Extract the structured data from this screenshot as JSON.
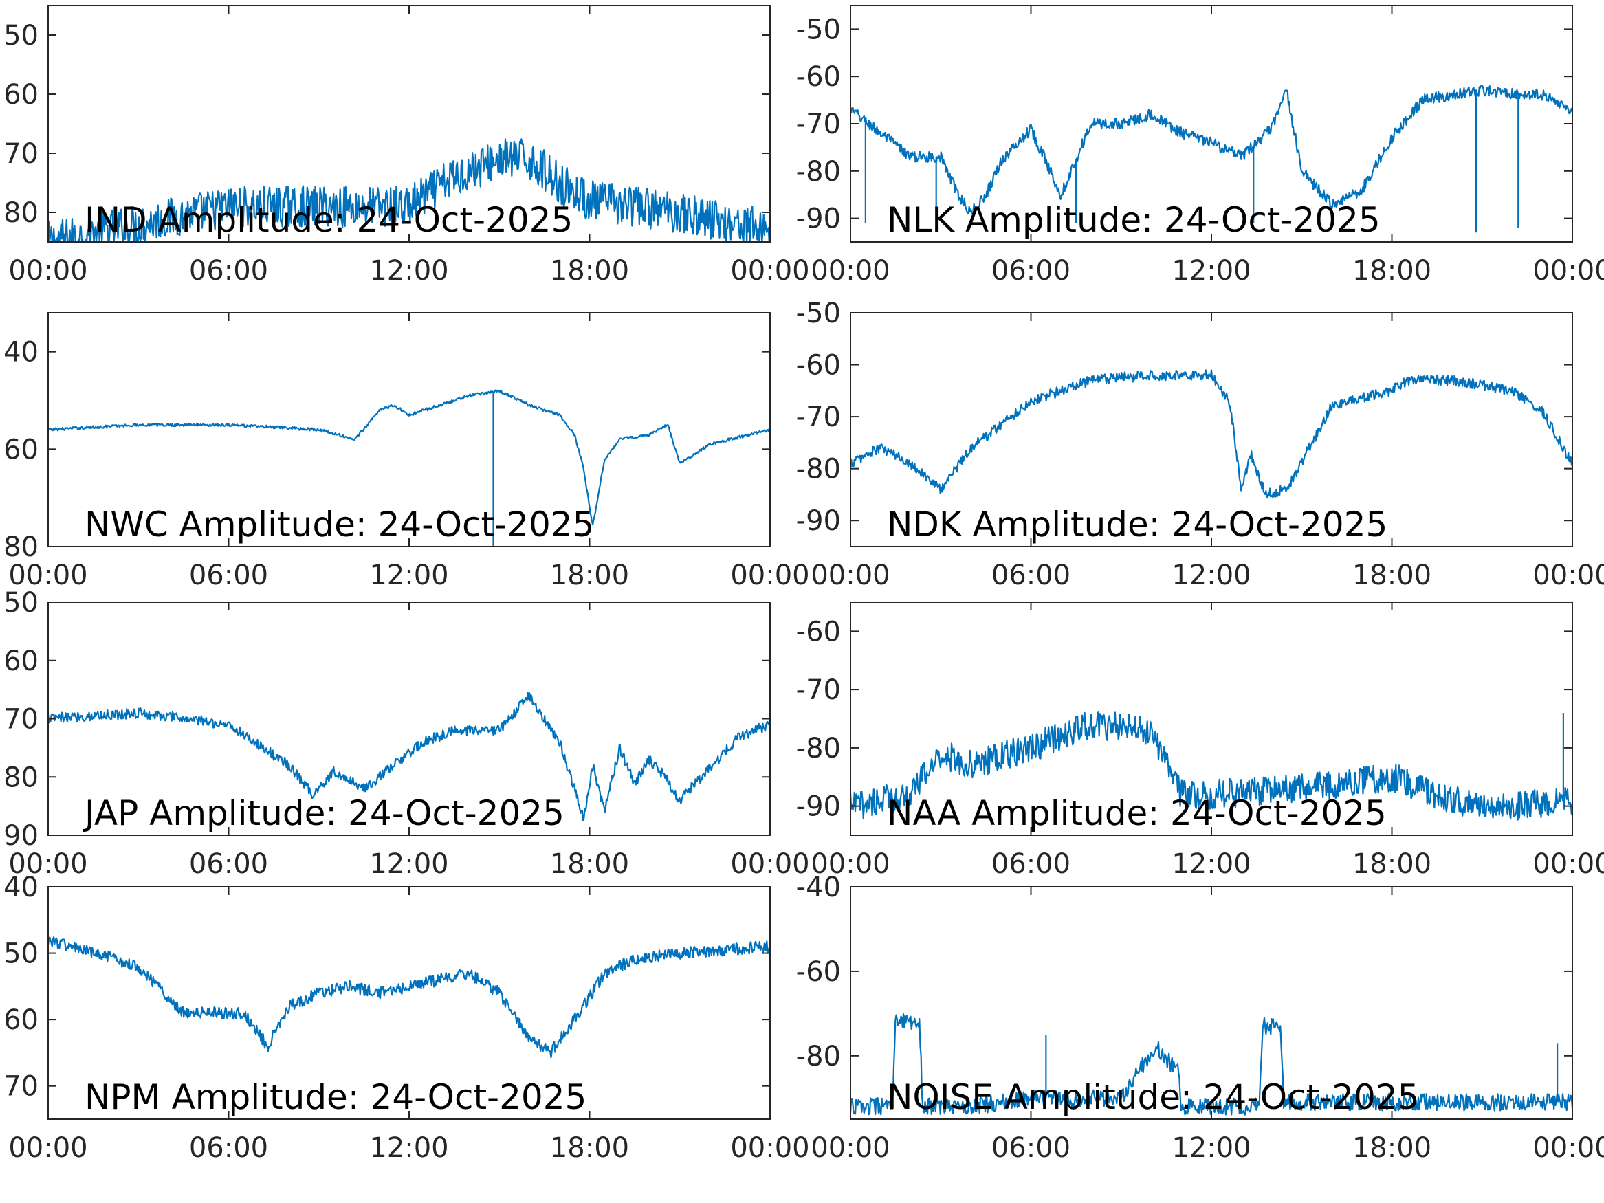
{
  "figure": {
    "x_tick_labels": [
      "00:00",
      "06:00",
      "12:00",
      "18:00",
      "00:00"
    ],
    "trace_color": "#0072BD"
  },
  "chart_data": [
    {
      "type": "line",
      "title": "IND Amplitude: 24-Oct-2025",
      "xlabel": "",
      "ylabel": "",
      "x_hours": [
        0,
        3,
        6,
        9,
        12,
        13.5,
        15,
        16,
        17,
        18,
        21,
        24
      ],
      "y": [
        -85,
        -82,
        -79,
        -79,
        -79,
        -74,
        -71,
        -71,
        -75,
        -78,
        -80,
        -83
      ],
      "noise": 3.5,
      "spikes": [],
      "ylim": [
        -85,
        -45
      ],
      "yticks": [
        -50,
        -60,
        -70,
        -80
      ],
      "ytick_labels": [
        "50",
        "60",
        "70",
        "80"
      ],
      "grid": false
    },
    {
      "type": "line",
      "title": "NLK Amplitude: 24-Oct-2025",
      "xlabel": "",
      "ylabel": "",
      "x_hours": [
        0,
        1,
        2,
        3,
        3.5,
        4,
        4.5,
        5,
        6,
        7,
        8,
        9,
        10,
        11,
        12,
        13,
        14,
        14.5,
        15,
        16,
        17,
        18,
        19,
        21,
        23,
        24
      ],
      "y": [
        -67,
        -72,
        -77,
        -77,
        -84,
        -89,
        -85,
        -78,
        -71,
        -85,
        -70,
        -70,
        -68,
        -72,
        -74,
        -77,
        -71,
        -63,
        -80,
        -87,
        -84,
        -73,
        -65,
        -63,
        -64,
        -67
      ],
      "noise": 1.2,
      "spikes": [
        {
          "x": 0.5,
          "y": -91
        },
        {
          "x": 2.85,
          "y": -91
        },
        {
          "x": 7.5,
          "y": -91
        },
        {
          "x": 13.4,
          "y": -91
        },
        {
          "x": 20.8,
          "y": -93
        },
        {
          "x": 22.2,
          "y": -92
        }
      ],
      "ylim": [
        -95,
        -45
      ],
      "yticks": [
        -50,
        -60,
        -70,
        -80,
        -90
      ],
      "ytick_labels": [
        "-50",
        "-60",
        "-70",
        "-80",
        "-90"
      ],
      "grid": false
    },
    {
      "type": "line",
      "title": "NWC Amplitude: 24-Oct-2025",
      "xlabel": "",
      "ylabel": "",
      "x_hours": [
        0,
        3,
        6,
        9,
        10.2,
        11,
        11.5,
        12,
        13,
        14,
        15,
        16,
        17,
        17.5,
        17.8,
        18.1,
        18.5,
        19,
        20,
        20.6,
        21,
        22,
        24
      ],
      "y": [
        -56,
        -55,
        -55,
        -56,
        -58,
        -52,
        -51,
        -53,
        -51,
        -49,
        -48,
        -51,
        -53,
        -57,
        -64,
        -76,
        -62,
        -58,
        -57,
        -55,
        -63,
        -59,
        -56
      ],
      "noise": 0.3,
      "spikes": [
        {
          "x": 14.8,
          "y": -80
        }
      ],
      "ylim": [
        -80,
        -32
      ],
      "yticks": [
        -40,
        -60,
        -80
      ],
      "ytick_labels": [
        "40",
        "60",
        "80"
      ],
      "grid": false
    },
    {
      "type": "line",
      "title": "NDK Amplitude: 24-Oct-2025",
      "xlabel": "",
      "ylabel": "",
      "x_hours": [
        0,
        1,
        2,
        3,
        4,
        6,
        8,
        10,
        12,
        12.6,
        13,
        13.3,
        13.8,
        14.5,
        16,
        18,
        18.5,
        20,
        22,
        23,
        24
      ],
      "y": [
        -79,
        -76,
        -79,
        -84,
        -76,
        -67,
        -63,
        -62,
        -62,
        -67,
        -84,
        -77,
        -85,
        -84,
        -68,
        -65,
        -63,
        -63,
        -65,
        -69,
        -79
      ],
      "noise": 1.0,
      "spikes": [],
      "ylim": [
        -95,
        -50
      ],
      "yticks": [
        -50,
        -60,
        -70,
        -80,
        -90
      ],
      "ytick_labels": [
        "-50",
        "-60",
        "-70",
        "-80",
        "-90"
      ],
      "grid": false
    },
    {
      "type": "line",
      "title": "JAP Amplitude: 24-Oct-2025",
      "xlabel": "",
      "ylabel": "",
      "x_hours": [
        0,
        3,
        6,
        8,
        8.8,
        9.5,
        10.5,
        11.5,
        12.5,
        13.5,
        15,
        16,
        17,
        17.8,
        18.1,
        18.5,
        19,
        19.5,
        20,
        20.5,
        21,
        23,
        24
      ],
      "y": [
        -70,
        -69,
        -71,
        -78,
        -83,
        -79,
        -82,
        -78,
        -74,
        -72,
        -72,
        -66,
        -74,
        -87,
        -78,
        -86,
        -75,
        -81,
        -77,
        -80,
        -84,
        -73,
        -71
      ],
      "noise": 0.9,
      "spikes": [],
      "ylim": [
        -90,
        -50
      ],
      "yticks": [
        -50,
        -60,
        -70,
        -80,
        -90
      ],
      "ytick_labels": [
        "50",
        "60",
        "70",
        "80",
        "90"
      ],
      "grid": false
    },
    {
      "type": "line",
      "title": "NAA Amplitude: 24-Oct-2025",
      "xlabel": "",
      "ylabel": "",
      "x_hours": [
        0,
        2,
        3,
        4,
        6,
        8,
        10,
        11,
        12,
        15,
        18,
        20,
        22,
        24
      ],
      "y": [
        -90,
        -88,
        -81,
        -83,
        -80,
        -76,
        -77,
        -88,
        -88,
        -87,
        -85,
        -89,
        -90,
        -89
      ],
      "noise": 2.5,
      "spikes": [
        {
          "x": 23.7,
          "y": -74
        }
      ],
      "ylim": [
        -95,
        -55
      ],
      "yticks": [
        -60,
        -70,
        -80,
        -90
      ],
      "ytick_labels": [
        "-60",
        "-70",
        "-80",
        "-90"
      ],
      "grid": false
    },
    {
      "type": "line",
      "title": "NPM Amplitude: 24-Oct-2025",
      "xlabel": "",
      "ylabel": "",
      "x_hours": [
        0,
        3,
        4.5,
        5.5,
        6.5,
        7.3,
        8,
        9,
        10,
        11,
        12,
        13,
        14,
        15,
        16,
        16.7,
        17.5,
        18.5,
        19.5,
        21,
        24
      ],
      "y": [
        -48,
        -52,
        -59,
        -59,
        -59,
        -64,
        -58,
        -56,
        -55,
        -56,
        -55,
        -54,
        -53,
        -56,
        -63,
        -65,
        -60,
        -53,
        -51,
        -50,
        -49
      ],
      "noise": 0.9,
      "spikes": [],
      "ylim": [
        -75,
        -40
      ],
      "yticks": [
        -40,
        -50,
        -60,
        -70
      ],
      "ytick_labels": [
        "40",
        "50",
        "60",
        "70"
      ],
      "grid": false
    },
    {
      "type": "line",
      "title": "NOISE Amplitude: 24-Oct-2025",
      "xlabel": "",
      "ylabel": "",
      "x_hours": [
        0,
        1.4,
        1.5,
        2.3,
        2.4,
        4,
        6,
        9,
        9.5,
        10.2,
        10.9,
        11,
        13.6,
        13.7,
        14.3,
        14.4,
        18,
        24
      ],
      "y": [
        -92,
        -92,
        -72,
        -72,
        -92,
        -92,
        -90,
        -90,
        -84,
        -78,
        -84,
        -92,
        -92,
        -73,
        -73,
        -91,
        -91,
        -91
      ],
      "noise": 2.0,
      "spikes": [
        {
          "x": 6.5,
          "y": -75
        },
        {
          "x": 23.5,
          "y": -77
        }
      ],
      "ylim": [
        -95,
        -40
      ],
      "yticks": [
        -40,
        -60,
        -80
      ],
      "ytick_labels": [
        "-40",
        "-60",
        "-80"
      ],
      "grid": false
    }
  ]
}
